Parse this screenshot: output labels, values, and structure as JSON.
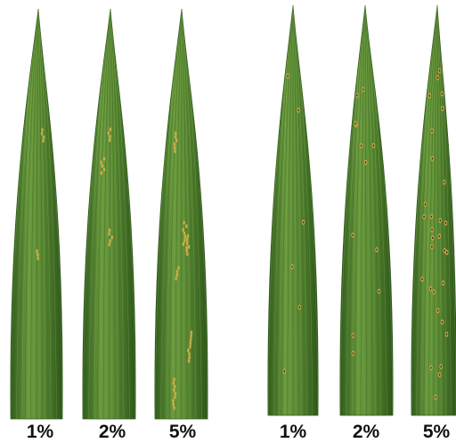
{
  "colors": {
    "leaf_dark": "#2f5a1c",
    "leaf_mid": "#5a8a34",
    "leaf_light": "#7aa24a",
    "vein": "#3f6a24",
    "lesion_stripe": "#d4b04a",
    "lesion_spot": "#c9a64a",
    "lesion_center": "#4a3a1a"
  },
  "groups": [
    {
      "type": "stripe",
      "leaves": [
        {
          "label": "1%",
          "severity": 0.01
        },
        {
          "label": "2%",
          "severity": 0.02
        },
        {
          "label": "5%",
          "severity": 0.05
        }
      ]
    },
    {
      "type": "spot",
      "leaves": [
        {
          "label": "1%",
          "severity": 0.01
        },
        {
          "label": "2%",
          "severity": 0.02
        },
        {
          "label": "5%",
          "severity": 0.05
        }
      ]
    }
  ]
}
